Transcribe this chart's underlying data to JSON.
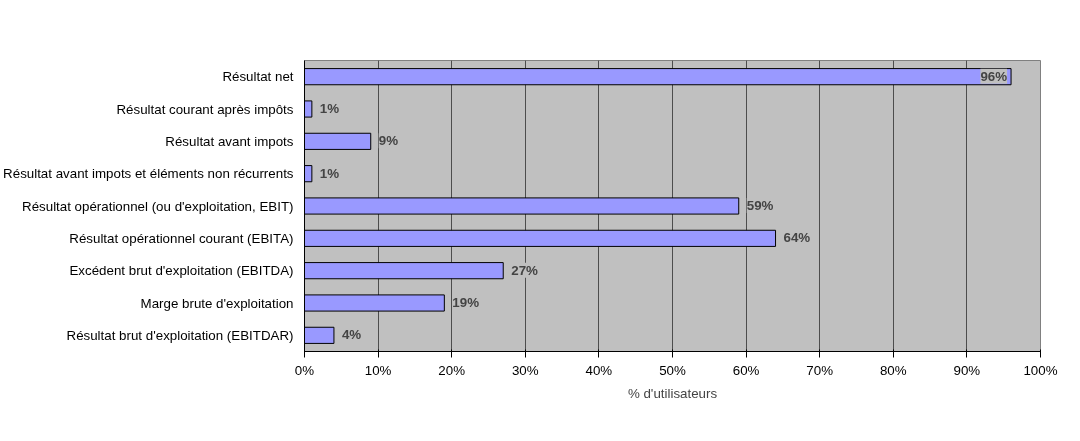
{
  "chart_data": {
    "type": "bar",
    "orientation": "horizontal",
    "xlabel": "% d'utilisateurs",
    "categories": [
      "Résultat net",
      "Résultat courant après impôts",
      "Résultat avant impots",
      "Résultat avant impots et éléments non récurrents",
      "Résultat opérationnel (ou d'exploitation, EBIT)",
      "Résultat opérationnel courant (EBITA)",
      "Excédent brut d'exploitation (EBITDA)",
      "Marge brute d'exploitation",
      "Résultat brut d'exploitation (EBITDAR)"
    ],
    "values": [
      96,
      1,
      9,
      1,
      59,
      64,
      27,
      19,
      4
    ],
    "value_labels": [
      "96%",
      "1%",
      "9%",
      "1%",
      "59%",
      "64%",
      "27%",
      "19%",
      "4%"
    ],
    "color": "#9999ff",
    "xlim": [
      0,
      100
    ],
    "xticks": [
      {
        "value": 0,
        "label": "0%"
      },
      {
        "value": 10,
        "label": "10%"
      },
      {
        "value": 20,
        "label": "20%"
      },
      {
        "value": 30,
        "label": "30%"
      },
      {
        "value": 40,
        "label": "40%"
      },
      {
        "value": 50,
        "label": "50%"
      },
      {
        "value": 60,
        "label": "60%"
      },
      {
        "value": 70,
        "label": "70%"
      },
      {
        "value": 80,
        "label": "80%"
      },
      {
        "value": 90,
        "label": "90%"
      },
      {
        "value": 100,
        "label": "100%"
      }
    ],
    "grid": "x"
  }
}
